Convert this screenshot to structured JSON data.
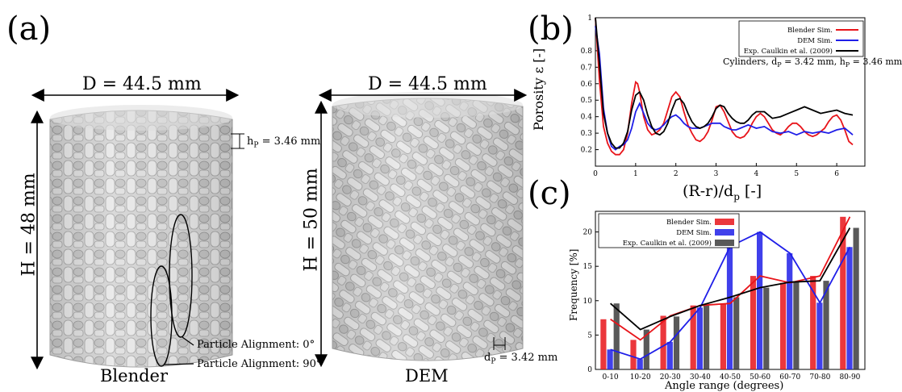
{
  "panels": {
    "a": {
      "label": "(a)",
      "blender": {
        "diameter": "D = 44.5 mm",
        "height": "H = 48 mm",
        "particle_height": "h",
        "particle_height_sub": "P",
        "particle_height_value": " = 3.46 mm",
        "align_0": "Particle Alignment: 0°",
        "align_90": "Particle Alignment: 90°",
        "caption": "Blender"
      },
      "dem": {
        "diameter": "D = 44.5 mm",
        "height": "H = 50 mm",
        "particle_diameter": "d",
        "particle_diameter_sub": "P",
        "particle_diameter_value": " = 3.42 mm",
        "caption": "DEM"
      }
    },
    "b": {
      "label": "(b)"
    },
    "c": {
      "label": "(c)"
    }
  },
  "colors": {
    "blender": "#e8141a",
    "dem": "#1f1ee8",
    "exp": "#000000",
    "exp_bar": "#3c3c3c",
    "particle": "#cfcfcf"
  },
  "chart_data": [
    {
      "type": "line",
      "xlabel": "(R-r)/d",
      "xlabel_sub": "p",
      "xlabel_unit": " [-]",
      "ylabel": "Porosity ε [-]",
      "xlim": [
        0,
        6.7
      ],
      "ylim": [
        0.1,
        1
      ],
      "xticks": [
        0,
        1,
        2,
        3,
        4,
        5,
        6
      ],
      "yticks": [
        0.2,
        0.3,
        0.4,
        0.5,
        0.6,
        0.7,
        0.8,
        1
      ],
      "annotation": {
        "prefix": "Cylinders, d",
        "sub1": "P",
        "middle": " = 3.42 mm, h",
        "sub2": "P",
        "suffix": " = 3.46 mm"
      },
      "legend_position": "top-right",
      "series": [
        {
          "name": "Blender Sim.",
          "color": "#e8141a",
          "x": [
            0,
            0.1,
            0.2,
            0.3,
            0.4,
            0.5,
            0.6,
            0.7,
            0.8,
            0.9,
            1.0,
            1.05,
            1.1,
            1.2,
            1.3,
            1.4,
            1.5,
            1.6,
            1.7,
            1.8,
            1.9,
            2.0,
            2.1,
            2.2,
            2.3,
            2.4,
            2.5,
            2.6,
            2.7,
            2.8,
            2.9,
            3.0,
            3.1,
            3.2,
            3.3,
            3.4,
            3.5,
            3.6,
            3.7,
            3.8,
            3.9,
            4.0,
            4.1,
            4.2,
            4.3,
            4.4,
            4.5,
            4.6,
            4.7,
            4.8,
            4.9,
            5.0,
            5.1,
            5.2,
            5.3,
            5.4,
            5.5,
            5.6,
            5.7,
            5.8,
            5.9,
            6.0,
            6.1,
            6.2,
            6.3,
            6.4
          ],
          "y": [
            1.0,
            0.62,
            0.34,
            0.24,
            0.19,
            0.17,
            0.17,
            0.2,
            0.3,
            0.48,
            0.61,
            0.6,
            0.55,
            0.4,
            0.32,
            0.29,
            0.3,
            0.32,
            0.36,
            0.44,
            0.52,
            0.55,
            0.52,
            0.43,
            0.35,
            0.3,
            0.26,
            0.25,
            0.27,
            0.31,
            0.38,
            0.46,
            0.47,
            0.43,
            0.37,
            0.31,
            0.28,
            0.27,
            0.28,
            0.31,
            0.36,
            0.4,
            0.42,
            0.4,
            0.36,
            0.32,
            0.3,
            0.29,
            0.31,
            0.34,
            0.36,
            0.36,
            0.34,
            0.31,
            0.29,
            0.28,
            0.29,
            0.31,
            0.33,
            0.37,
            0.4,
            0.41,
            0.38,
            0.32,
            0.25,
            0.23
          ]
        },
        {
          "name": "DEM Sim.",
          "color": "#1f1ee8",
          "x": [
            0,
            0.1,
            0.2,
            0.3,
            0.4,
            0.5,
            0.6,
            0.7,
            0.8,
            0.9,
            1.0,
            1.1,
            1.2,
            1.3,
            1.4,
            1.5,
            1.6,
            1.7,
            1.8,
            1.9,
            2.0,
            2.1,
            2.2,
            2.3,
            2.4,
            2.5,
            2.6,
            2.7,
            2.8,
            2.9,
            3.0,
            3.1,
            3.2,
            3.3,
            3.4,
            3.5,
            3.6,
            3.7,
            3.8,
            3.9,
            4.0,
            4.2,
            4.4,
            4.6,
            4.8,
            5.0,
            5.2,
            5.4,
            5.6,
            5.8,
            6.0,
            6.2,
            6.3,
            6.4
          ],
          "y": [
            0.95,
            0.78,
            0.45,
            0.3,
            0.22,
            0.2,
            0.22,
            0.23,
            0.26,
            0.33,
            0.43,
            0.48,
            0.42,
            0.36,
            0.33,
            0.32,
            0.33,
            0.35,
            0.38,
            0.4,
            0.41,
            0.39,
            0.36,
            0.34,
            0.33,
            0.33,
            0.33,
            0.34,
            0.35,
            0.36,
            0.36,
            0.36,
            0.34,
            0.33,
            0.32,
            0.32,
            0.33,
            0.34,
            0.35,
            0.34,
            0.33,
            0.34,
            0.31,
            0.3,
            0.31,
            0.29,
            0.31,
            0.3,
            0.31,
            0.3,
            0.32,
            0.33,
            0.31,
            0.29
          ]
        },
        {
          "name": "Exp. Caulkin et al. (2009)",
          "color": "#000000",
          "x": [
            0,
            0.1,
            0.2,
            0.3,
            0.4,
            0.5,
            0.6,
            0.7,
            0.8,
            0.9,
            1.0,
            1.1,
            1.2,
            1.3,
            1.4,
            1.5,
            1.6,
            1.7,
            1.8,
            1.9,
            2.0,
            2.1,
            2.2,
            2.3,
            2.4,
            2.5,
            2.6,
            2.7,
            2.8,
            2.9,
            3.0,
            3.1,
            3.2,
            3.3,
            3.4,
            3.5,
            3.6,
            3.7,
            3.8,
            3.9,
            4.0,
            4.2,
            4.4,
            4.6,
            4.8,
            5.0,
            5.2,
            5.4,
            5.6,
            5.8,
            6.0,
            6.2,
            6.4
          ],
          "y": [
            1.0,
            0.72,
            0.42,
            0.3,
            0.24,
            0.21,
            0.21,
            0.24,
            0.31,
            0.44,
            0.53,
            0.55,
            0.5,
            0.41,
            0.34,
            0.3,
            0.29,
            0.31,
            0.36,
            0.44,
            0.5,
            0.51,
            0.48,
            0.42,
            0.37,
            0.34,
            0.33,
            0.34,
            0.36,
            0.4,
            0.45,
            0.47,
            0.46,
            0.42,
            0.39,
            0.37,
            0.36,
            0.36,
            0.38,
            0.41,
            0.43,
            0.43,
            0.39,
            0.4,
            0.42,
            0.44,
            0.46,
            0.44,
            0.42,
            0.43,
            0.44,
            0.42,
            0.41
          ]
        }
      ]
    },
    {
      "type": "bar",
      "xlabel": "Angle range (degrees)",
      "ylabel": "Frequency [%]",
      "categories": [
        "0-10",
        "10-20",
        "20-30",
        "30-40",
        "40-50",
        "50-60",
        "60-70",
        "70-80",
        "80-90"
      ],
      "ylim": [
        0,
        23
      ],
      "yticks": [
        0,
        5,
        10,
        15,
        20
      ],
      "legend_position": "top-left",
      "series": [
        {
          "name": "Blender Sim.",
          "color": "#e8141a",
          "values": [
            7.3,
            4.3,
            7.8,
            9.3,
            9.6,
            13.6,
            12.6,
            13.6,
            22.2
          ]
        },
        {
          "name": "DEM Sim.",
          "color": "#1f1ee8",
          "values": [
            2.9,
            1.5,
            4.0,
            9.0,
            17.9,
            20.0,
            16.9,
            9.7,
            17.8
          ]
        },
        {
          "name": "Exp. Caulkin et al. (2009)",
          "color": "#3c3c3c",
          "values": [
            9.6,
            5.8,
            7.7,
            9.3,
            10.5,
            11.9,
            12.7,
            12.9,
            20.6
          ]
        }
      ],
      "trend_lines": [
        {
          "color": "#e8141a",
          "values": [
            7.3,
            4.3,
            7.8,
            9.3,
            9.6,
            13.6,
            12.6,
            13.6,
            22.2
          ]
        },
        {
          "color": "#1f1ee8",
          "values": [
            2.9,
            1.5,
            4.0,
            9.0,
            17.9,
            20.0,
            16.9,
            9.7,
            17.8
          ]
        },
        {
          "color": "#000000",
          "values": [
            9.6,
            5.8,
            7.7,
            9.3,
            10.5,
            11.9,
            12.7,
            12.9,
            20.6
          ]
        }
      ]
    }
  ]
}
